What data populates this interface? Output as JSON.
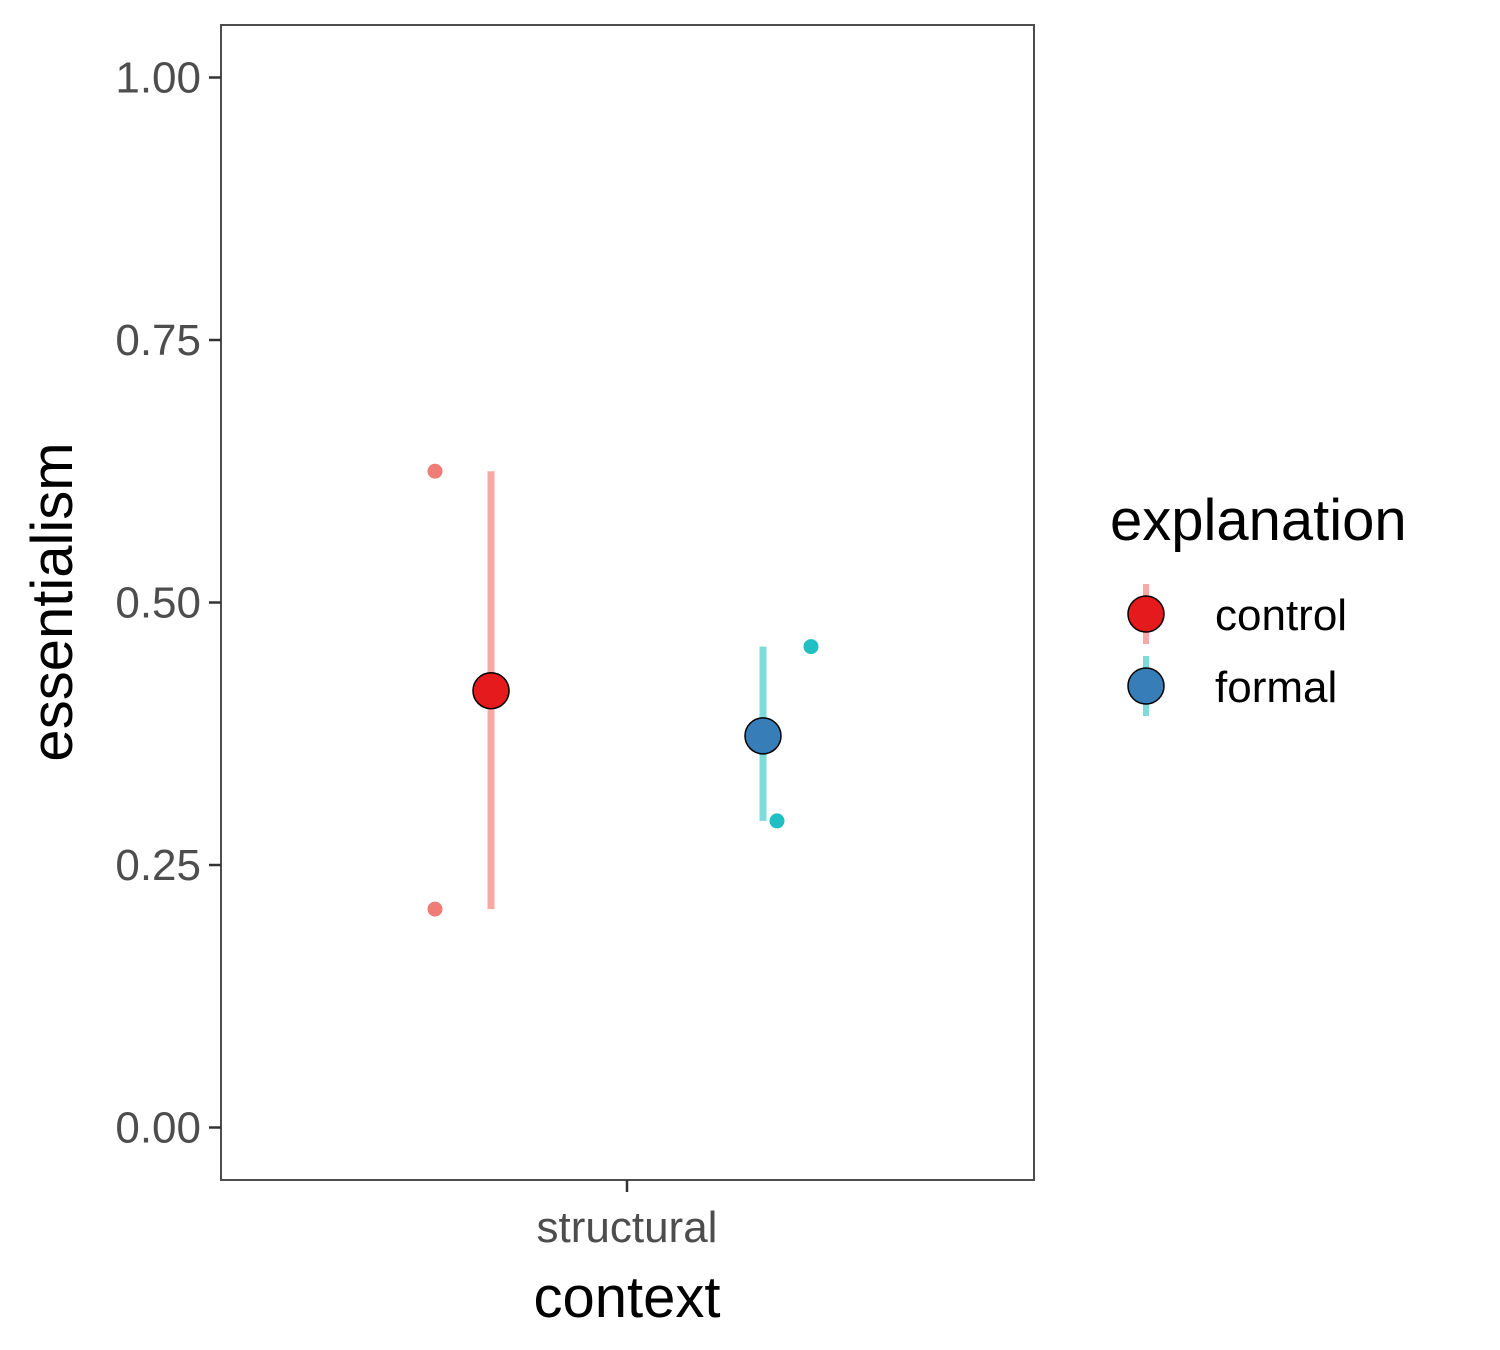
{
  "chart_data": {
    "type": "scatter",
    "xlabel": "context",
    "ylabel": "essentialism",
    "categories": [
      "structural"
    ],
    "ylim": [
      -0.05,
      1.05
    ],
    "yticks": [
      0.0,
      0.25,
      0.5,
      0.75,
      1.0
    ],
    "ytick_labels": [
      "0.00",
      "0.25",
      "0.50",
      "0.75",
      "1.00"
    ],
    "grid": false,
    "legend": {
      "title": "explanation",
      "position": "right",
      "entries": [
        "control",
        "formal"
      ]
    },
    "series": [
      {
        "name": "control",
        "category": "structural",
        "mean": 0.416,
        "interval": [
          0.208,
          0.625
        ],
        "points": [
          0.625,
          0.208
        ],
        "mean_color": "#e41a1c",
        "range_color": "#f8a8a5",
        "point_color": "#f07c78"
      },
      {
        "name": "formal",
        "category": "structural",
        "mean": 0.373,
        "interval": [
          0.292,
          0.458
        ],
        "points": [
          0.458,
          0.292
        ],
        "mean_color": "#377eb8",
        "range_color": "#7fdada",
        "point_color": "#1fbfc4"
      }
    ]
  }
}
